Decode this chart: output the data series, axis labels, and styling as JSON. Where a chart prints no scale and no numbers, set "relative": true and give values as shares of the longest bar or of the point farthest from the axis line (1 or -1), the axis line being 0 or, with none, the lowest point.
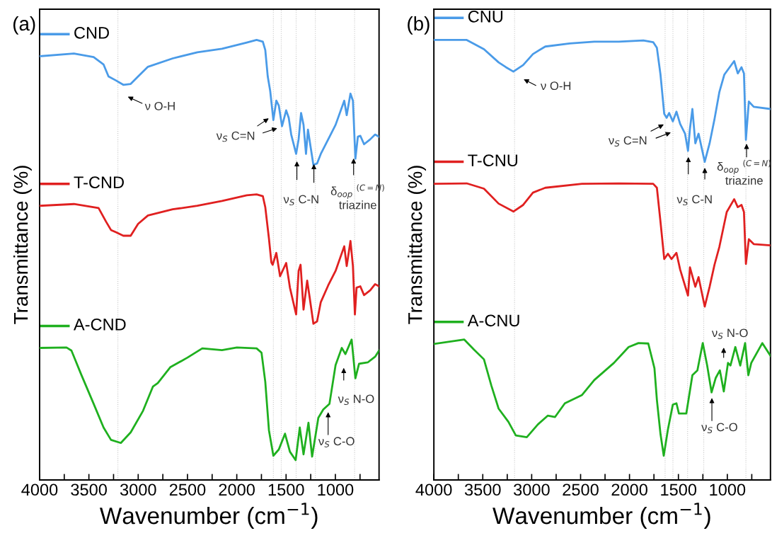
{
  "chart_data": [
    {
      "type": "line",
      "title": "(a)",
      "xlabel": "Wavenumber (cm$^{−1}$)",
      "ylabel": "Transmittance (%)",
      "relative": true,
      "tick_labels": "x",
      "grid": false,
      "line_style": "solid",
      "xlim": [
        4000,
        557
      ],
      "xticks": [
        4000,
        {
          "value": 3750,
          "label": null
        },
        3500,
        {
          "value": 3250,
          "label": null
        },
        3000,
        {
          "value": 2750,
          "label": null
        },
        2500,
        {
          "value": 2250,
          "label": null
        },
        2000,
        {
          "value": 1750,
          "label": null
        },
        1500,
        {
          "value": 1250,
          "label": null
        },
        1000,
        {
          "value": 750,
          "label": null
        }
      ],
      "series": [
        {
          "name": "CND",
          "color": "#4a9be8",
          "x": [
            4000,
            3652,
            3452,
            3351,
            3301,
            3226,
            3151,
            3076,
            3001,
            2901,
            2650,
            2400,
            2150,
            1899,
            1799,
            1736,
            1711,
            1686,
            1661,
            1629,
            1599,
            1574,
            1541,
            1499,
            1473,
            1448,
            1398,
            1373,
            1348,
            1323,
            1298,
            1278,
            1248,
            1223,
            1186,
            1148,
            1048,
            998,
            910,
            885,
            847,
            822,
            797,
            772,
            747,
            709,
            647,
            597,
            557
          ],
          "values": [
            0.963,
            0.969,
            0.961,
            0.944,
            0.917,
            0.908,
            0.898,
            0.9,
            0.917,
            0.939,
            0.958,
            0.972,
            0.98,
            0.994,
            1.0,
            0.996,
            0.977,
            0.917,
            0.884,
            0.818,
            0.862,
            0.851,
            0.804,
            0.84,
            0.823,
            0.785,
            0.741,
            0.774,
            0.834,
            0.807,
            0.741,
            0.796,
            0.752,
            0.716,
            0.719,
            0.741,
            0.785,
            0.807,
            0.862,
            0.829,
            0.878,
            0.862,
            0.73,
            0.78,
            0.782,
            0.763,
            0.774,
            0.785,
            0.78
          ]
        },
        {
          "name": "T-CND",
          "color": "#e02020",
          "x": [
            4000,
            3652,
            3402,
            3326,
            3276,
            3226,
            3151,
            3076,
            3001,
            2901,
            2650,
            2400,
            2150,
            1899,
            1799,
            1736,
            1711,
            1674,
            1649,
            1636,
            1599,
            1561,
            1499,
            1461,
            1398,
            1373,
            1353,
            1323,
            1286,
            1261,
            1223,
            1186,
            1148,
            1073,
            998,
            910,
            885,
            847,
            822,
            802,
            785,
            747,
            709,
            647,
            597,
            557
          ],
          "values": [
            0.623,
            0.627,
            0.618,
            0.587,
            0.568,
            0.563,
            0.555,
            0.555,
            0.582,
            0.601,
            0.615,
            0.623,
            0.634,
            0.647,
            0.649,
            0.645,
            0.62,
            0.549,
            0.494,
            0.489,
            0.516,
            0.463,
            0.493,
            0.437,
            0.376,
            0.475,
            0.489,
            0.387,
            0.453,
            0.415,
            0.355,
            0.36,
            0.404,
            0.442,
            0.475,
            0.531,
            0.486,
            0.543,
            0.486,
            0.376,
            0.437,
            0.44,
            0.42,
            0.431,
            0.445,
            0.44
          ]
        },
        {
          "name": "A-CND",
          "color": "#1fb01f",
          "x": [
            4000,
            3727,
            3677,
            3577,
            3452,
            3351,
            3276,
            3176,
            3076,
            2951,
            2851,
            2801,
            2675,
            2500,
            2350,
            2150,
            1999,
            1799,
            1749,
            1711,
            1674,
            1629,
            1574,
            1511,
            1461,
            1403,
            1361,
            1323,
            1273,
            1236,
            1173,
            1123,
            1060,
            998,
            935,
            898,
            835,
            797,
            760,
            672,
            597,
            557
          ],
          "values": [
            0.3,
            0.301,
            0.294,
            0.239,
            0.173,
            0.119,
            0.091,
            0.084,
            0.108,
            0.157,
            0.212,
            0.22,
            0.256,
            0.278,
            0.299,
            0.295,
            0.301,
            0.299,
            0.289,
            0.223,
            0.113,
            0.055,
            0.069,
            0.105,
            0.064,
            0.045,
            0.119,
            0.058,
            0.13,
            0.053,
            0.141,
            0.16,
            0.173,
            0.261,
            0.3,
            0.286,
            0.319,
            0.231,
            0.264,
            0.267,
            0.28,
            0.294
          ]
        }
      ],
      "ref_lines": [
        {
          "axis": "x",
          "value": 3206,
          "color": "#c8c8c8",
          "line_style": "dotted"
        },
        {
          "axis": "x",
          "value": 1629,
          "color": "#c8c8c8",
          "line_style": "dotted"
        },
        {
          "axis": "x",
          "value": 1549,
          "color": "#c8c8c8",
          "line_style": "dotted"
        },
        {
          "axis": "x",
          "value": 1398,
          "color": "#c8c8c8",
          "line_style": "dotted"
        },
        {
          "axis": "x",
          "value": 1203,
          "color": "#c8c8c8",
          "line_style": "dotted"
        },
        {
          "axis": "x",
          "value": 805,
          "color": "#c8c8c8",
          "line_style": "dotted"
        }
      ],
      "legend": "left",
      "annotations": [
        "ν O-H",
        "ν$_{S}$ C=N",
        "ν$_{S}$ C-N",
        "δ$_{oop}$ $^{(C=N)}$\ntriazine",
        "ν$_{S}$ N-O",
        "ν$_{S}$ C-O"
      ]
    },
    {
      "type": "line",
      "title": "(b)",
      "xlabel": "Wavenumber (cm$^{−1}$)",
      "ylabel": "Transmittance (%)",
      "relative": true,
      "tick_labels": "x",
      "grid": false,
      "line_style": "solid",
      "xlim": [
        4000,
        559
      ],
      "xticks": [
        4000,
        {
          "value": 3750,
          "label": null
        },
        3500,
        {
          "value": 3250,
          "label": null
        },
        3000,
        {
          "value": 2750,
          "label": null
        },
        2500,
        {
          "value": 2250,
          "label": null
        },
        2000,
        {
          "value": 1750,
          "label": null
        },
        1500,
        {
          "value": 1250,
          "label": null
        },
        1000,
        {
          "value": 750,
          "label": null
        }
      ],
      "series": [
        {
          "name": "CNU",
          "color": "#4a9be8",
          "x": [
            4000,
            3664,
            3488,
            3338,
            3263,
            3187,
            3087,
            2987,
            2861,
            2611,
            2360,
            2109,
            1858,
            1758,
            1720,
            1683,
            1645,
            1620,
            1595,
            1557,
            1520,
            1482,
            1432,
            1402,
            1382,
            1357,
            1327,
            1294,
            1231,
            1181,
            1131,
            1081,
            1031,
            930,
            893,
            855,
            830,
            810,
            780,
            730,
            559
          ],
          "values": [
            1.0,
            1.0,
            0.979,
            0.949,
            0.938,
            0.928,
            0.943,
            0.968,
            0.985,
            0.992,
            0.996,
            0.996,
            0.999,
            0.995,
            0.982,
            0.921,
            0.832,
            0.823,
            0.834,
            0.815,
            0.837,
            0.809,
            0.787,
            0.748,
            0.798,
            0.843,
            0.765,
            0.787,
            0.723,
            0.765,
            0.82,
            0.882,
            0.921,
            0.952,
            0.924,
            0.938,
            0.924,
            0.773,
            0.86,
            0.848,
            0.843
          ]
        },
        {
          "name": "T-CNU",
          "color": "#e02020",
          "x": [
            4000,
            3664,
            3488,
            3338,
            3187,
            3087,
            2987,
            2861,
            2485,
            2109,
            1758,
            1720,
            1683,
            1645,
            1607,
            1570,
            1520,
            1482,
            1402,
            1382,
            1327,
            1294,
            1231,
            1181,
            1131,
            1081,
            1006,
            930,
            893,
            855,
            830,
            810,
            780,
            730,
            559
          ],
          "values": [
            0.673,
            0.674,
            0.662,
            0.628,
            0.61,
            0.625,
            0.653,
            0.664,
            0.673,
            0.674,
            0.673,
            0.664,
            0.586,
            0.502,
            0.514,
            0.502,
            0.516,
            0.478,
            0.419,
            0.483,
            0.439,
            0.461,
            0.394,
            0.439,
            0.489,
            0.53,
            0.609,
            0.638,
            0.62,
            0.625,
            0.609,
            0.491,
            0.547,
            0.536,
            0.533
          ]
        },
        {
          "name": "A-CNU",
          "color": "#1fb01f",
          "x": [
            4000,
            3689,
            3589,
            3488,
            3413,
            3338,
            3238,
            3162,
            3050,
            2937,
            2836,
            2761,
            2661,
            2485,
            2360,
            2159,
            2009,
            1908,
            1808,
            1745,
            1720,
            1683,
            1650,
            1607,
            1557,
            1520,
            1495,
            1419,
            1357,
            1306,
            1251,
            1206,
            1161,
            1118,
            1076,
            1036,
            993,
            968,
            918,
            868,
            818,
            785,
            755,
            642,
            559
          ],
          "values": [
            0.309,
            0.319,
            0.296,
            0.274,
            0.215,
            0.162,
            0.132,
            0.101,
            0.097,
            0.126,
            0.146,
            0.143,
            0.174,
            0.193,
            0.227,
            0.266,
            0.302,
            0.311,
            0.31,
            0.254,
            0.182,
            0.104,
            0.055,
            0.115,
            0.171,
            0.174,
            0.151,
            0.151,
            0.238,
            0.249,
            0.311,
            0.26,
            0.199,
            0.232,
            0.249,
            0.201,
            0.266,
            0.26,
            0.302,
            0.26,
            0.311,
            0.238,
            0.266,
            0.311,
            0.282
          ]
        }
      ],
      "ref_lines": [
        {
          "axis": "x",
          "value": 3175,
          "color": "#c8c8c8",
          "line_style": "dotted"
        },
        {
          "axis": "x",
          "value": 1636,
          "color": "#c8c8c8",
          "line_style": "dotted"
        },
        {
          "axis": "x",
          "value": 1556,
          "color": "#c8c8c8",
          "line_style": "dotted"
        },
        {
          "axis": "x",
          "value": 1406,
          "color": "#c8c8c8",
          "line_style": "dotted"
        },
        {
          "axis": "x",
          "value": 1241,
          "color": "#c8c8c8",
          "line_style": "dotted"
        },
        {
          "axis": "x",
          "value": 810,
          "color": "#c8c8c8",
          "line_style": "dotted"
        }
      ],
      "legend": "left",
      "annotations": [
        "ν O-H",
        "ν$_{S}$ C=N",
        "ν$_{S}$ C-N",
        "δ$_{oop}$ $^{(C=N)}$\ntriazine",
        "ν$_{S}$ N-O",
        "ν$_{S}$ C-O"
      ]
    }
  ]
}
